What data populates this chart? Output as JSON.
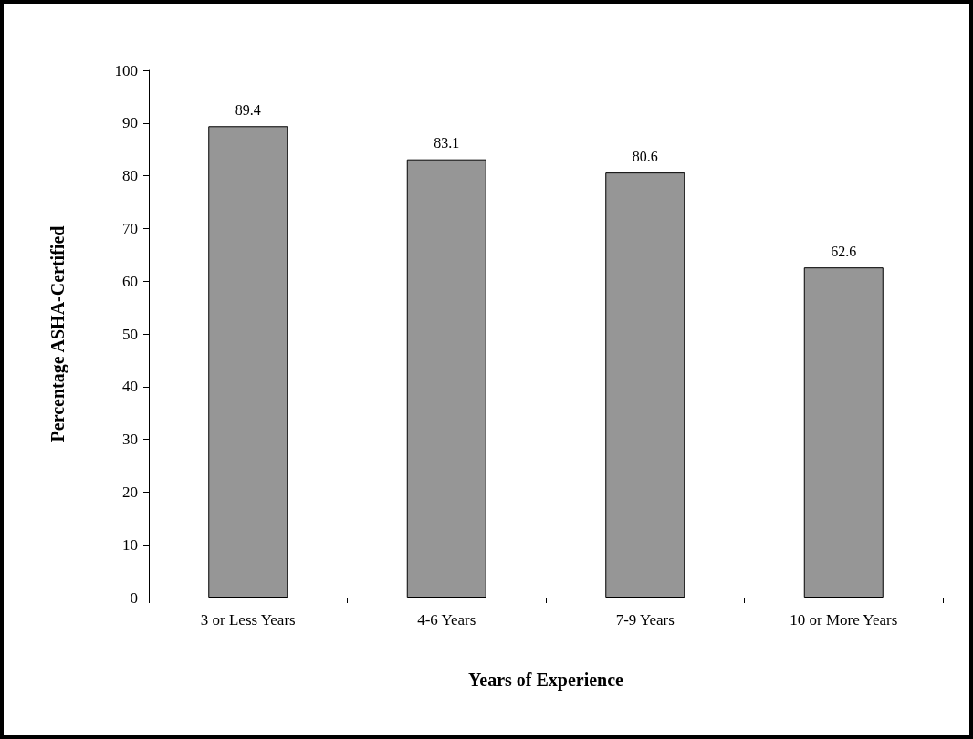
{
  "chart_data": {
    "type": "bar",
    "xlabel": "Years of Experience",
    "ylabel": "Percentage ASHA-Certified",
    "categories": [
      "3 or Less Years",
      "4-6 Years",
      "7-9 Years",
      "10 or More Years"
    ],
    "values": [
      89.4,
      83.1,
      80.6,
      62.6
    ],
    "color": "#969696",
    "ylim": [
      0,
      100
    ],
    "yticks": [
      0,
      10,
      20,
      30,
      40,
      50,
      60,
      70,
      80,
      90,
      100
    ],
    "grid": false,
    "data_labels": true
  }
}
